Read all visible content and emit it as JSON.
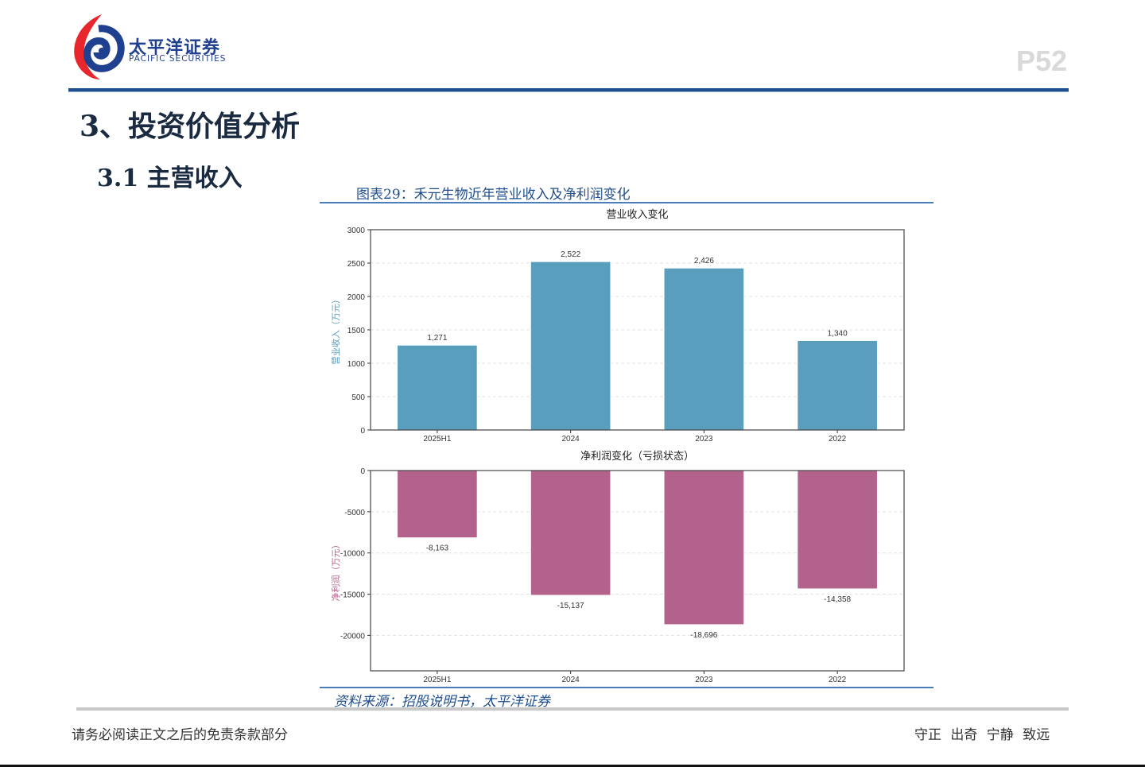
{
  "header": {
    "logo_cn": "太平洋证券",
    "logo_en": "PACIFIC SECURITIES",
    "page_number": "P52",
    "brand_color": "#1f3f8f",
    "logo_red": "#e8262d"
  },
  "section": {
    "title": "3、投资价值分析",
    "subtitle": "3.1 主营收入"
  },
  "figure": {
    "title": "图表29：禾元生物近年营业收入及净利润变化",
    "source": "资料来源：招股说明书，太平洋证券"
  },
  "footer": {
    "disclaimer": "请务必阅读正文之后的免责条款部分",
    "motto": "守正 出奇 宁静 致远"
  },
  "chart_data": [
    {
      "type": "bar",
      "title": "营业收入变化",
      "xlabel": "",
      "ylabel": "营业收入（万元）",
      "categories": [
        "2025H1",
        "2024",
        "2023",
        "2022"
      ],
      "values": [
        1271,
        2522,
        2426,
        1340
      ],
      "value_labels": [
        "1,271",
        "2,522",
        "2,426",
        "1,340"
      ],
      "ylim": [
        0,
        3000
      ],
      "yticks": [
        0,
        500,
        1000,
        1500,
        2000,
        2500,
        3000
      ],
      "grid": true,
      "color": "#5a9ebe"
    },
    {
      "type": "bar",
      "title": "净利润变化（亏损状态）",
      "xlabel": "",
      "ylabel": "净利润（万元）",
      "categories": [
        "2025H1",
        "2024",
        "2023",
        "2022"
      ],
      "values": [
        -8163,
        -15137,
        -18696,
        -14358
      ],
      "value_labels": [
        "-8,163",
        "-15,137",
        "-18,696",
        "-14,358"
      ],
      "ylim": [
        -24300,
        0
      ],
      "yticks": [
        0,
        -5000,
        -10000,
        -15000,
        -20000
      ],
      "grid": true,
      "color": "#b3638b"
    }
  ]
}
